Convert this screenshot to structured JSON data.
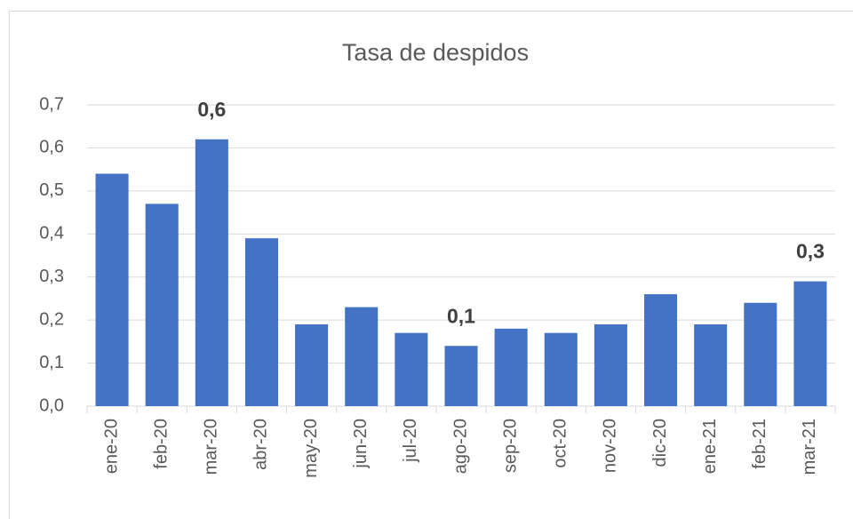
{
  "chart_data": {
    "type": "bar",
    "title": "Tasa de despidos",
    "categories": [
      "ene-20",
      "feb-20",
      "mar-20",
      "abr-20",
      "may-20",
      "jun-20",
      "jul-20",
      "ago-20",
      "sep-20",
      "oct-20",
      "nov-20",
      "dic-20",
      "ene-21",
      "feb-21",
      "mar-21"
    ],
    "values": [
      0.54,
      0.47,
      0.62,
      0.39,
      0.19,
      0.23,
      0.17,
      0.14,
      0.18,
      0.17,
      0.19,
      0.26,
      0.19,
      0.24,
      0.29
    ],
    "value_labels": [
      null,
      null,
      "0,6",
      null,
      null,
      null,
      null,
      "0,1",
      null,
      null,
      null,
      null,
      null,
      null,
      "0,3"
    ],
    "color": "#4472c4",
    "ylim": [
      0,
      0.7
    ],
    "yticks": [
      {
        "value": 0,
        "label": "0,0"
      },
      {
        "value": 0.1,
        "label": "0,1"
      },
      {
        "value": 0.2,
        "label": "0,2"
      },
      {
        "value": 0.3,
        "label": "0,3"
      },
      {
        "value": 0.4,
        "label": "0,4"
      },
      {
        "value": 0.5,
        "label": "0,5"
      },
      {
        "value": 0.6,
        "label": "0,6"
      },
      {
        "value": 0.7,
        "label": "0,7"
      }
    ],
    "grid": true
  }
}
